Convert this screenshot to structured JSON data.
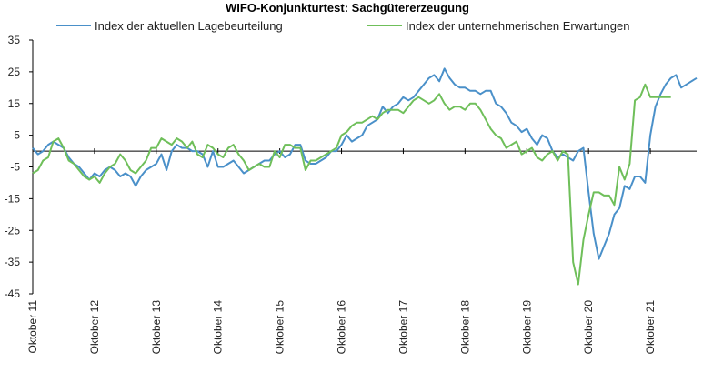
{
  "chart_data": {
    "type": "line",
    "title": "WIFO-Konjunkturtest: Sachgütererzeugung",
    "xlabel": "",
    "ylabel": "",
    "ylim": [
      -45,
      35
    ],
    "yticks": [
      35,
      25,
      15,
      5,
      -5,
      -15,
      -25,
      -35,
      -45
    ],
    "x_tick_labels": [
      "Oktober 11",
      "Oktober 12",
      "Oktober 13",
      "Oktober 14",
      "Oktober 15",
      "Oktober 16",
      "Oktober 17",
      "Oktober 18",
      "Oktober 19",
      "Oktober 20",
      "Oktober 21"
    ],
    "x_start": "Oktober 11",
    "x_end": "Oktober 21",
    "frequency": "monthly",
    "legend_position": "top",
    "grid": false,
    "zero_line": true,
    "series": [
      {
        "name": "Index der aktuellen Lagebeurteilung",
        "color": "#4a90c9",
        "values": [
          1,
          -1,
          0,
          2,
          3,
          2,
          1,
          -2,
          -4,
          -5,
          -7,
          -9,
          -7,
          -8,
          -6,
          -5,
          -6,
          -8,
          -7,
          -8,
          -11,
          -8,
          -6,
          -5,
          -4,
          -1,
          -6,
          0,
          2,
          1,
          1,
          0,
          0,
          -1,
          -5,
          0,
          -5,
          -5,
          -4,
          -3,
          -5,
          -7,
          -6,
          -5,
          -4,
          -3,
          -3,
          -1,
          0,
          -2,
          -1,
          2,
          2,
          -3,
          -4,
          -4,
          -3,
          -2,
          0,
          0,
          2,
          5,
          3,
          4,
          5,
          8,
          9,
          10,
          14,
          12,
          14,
          15,
          17,
          16,
          17,
          19,
          21,
          23,
          24,
          22,
          26,
          23,
          21,
          20,
          20,
          19,
          19,
          18,
          19,
          19,
          15,
          14,
          12,
          9,
          8,
          6,
          7,
          4,
          2,
          5,
          4,
          0,
          -2,
          -1,
          -2,
          -3,
          0,
          1,
          -13,
          -26,
          -34,
          -30,
          -26,
          -20,
          -18,
          -11,
          -12,
          -8,
          -8,
          -10,
          5,
          14,
          18,
          21,
          23,
          24,
          20,
          21,
          22,
          23
        ]
      },
      {
        "name": "Index der unternehmerischen Erwartungen",
        "color": "#6fbf5a",
        "values": [
          -7,
          -6,
          -3,
          -2,
          3,
          4,
          1,
          -3,
          -4,
          -6,
          -8,
          -9,
          -8,
          -10,
          -7,
          -5,
          -4,
          -1,
          -3,
          -6,
          -7,
          -5,
          -3,
          1,
          1,
          4,
          3,
          2,
          4,
          3,
          1,
          3,
          -1,
          -2,
          2,
          1,
          -1,
          -2,
          1,
          2,
          -1,
          -3,
          -6,
          -5,
          -4,
          -5,
          -5,
          0,
          -2,
          2,
          2,
          1,
          1,
          -6,
          -3,
          -3,
          -2,
          -1,
          0,
          1,
          5,
          6,
          8,
          9,
          9,
          10,
          11,
          10,
          12,
          13,
          13,
          13,
          12,
          14,
          16,
          17,
          16,
          15,
          16,
          18,
          15,
          13,
          14,
          14,
          13,
          15,
          15,
          13,
          10,
          7,
          5,
          4,
          1,
          2,
          3,
          -1,
          0,
          1,
          -2,
          -3,
          -1,
          0,
          -3,
          0,
          -1,
          -35,
          -42,
          -28,
          -20,
          -13,
          -13,
          -14,
          -14,
          -17,
          -5,
          -9,
          -4,
          16,
          17,
          21,
          17,
          17,
          17,
          17,
          17
        ]
      }
    ]
  }
}
